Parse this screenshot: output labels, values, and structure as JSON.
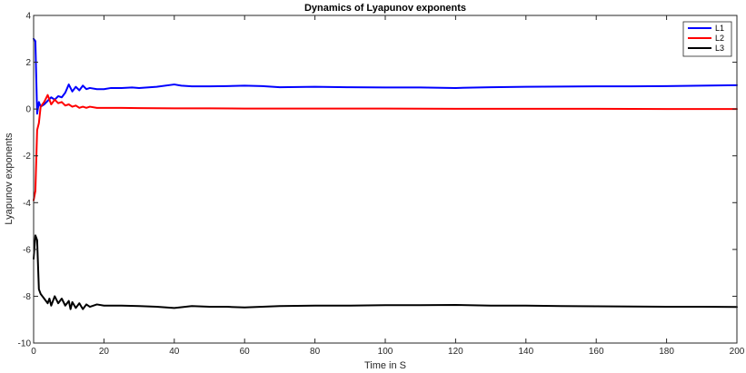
{
  "chart_data": {
    "type": "line",
    "title": "Dynamics of Lyapunov exponents",
    "xlabel": "Time in S",
    "ylabel": "Lyapunov exponents",
    "xlim": [
      0,
      200
    ],
    "ylim": [
      -10,
      4
    ],
    "xticks": [
      0,
      20,
      40,
      60,
      80,
      100,
      120,
      140,
      160,
      180,
      200
    ],
    "yticks": [
      -10,
      -8,
      -6,
      -4,
      -2,
      0,
      2,
      4
    ],
    "xtick_labels": [
      "0",
      "20",
      "40",
      "60",
      "80",
      "100",
      "120",
      "140",
      "160",
      "180",
      "200"
    ],
    "ytick_labels": [
      "-10",
      "-8",
      "-6",
      "-4",
      "-2",
      "0",
      "2",
      "4"
    ],
    "grid": false,
    "legend_position": "top-right",
    "series": [
      {
        "name": "L1",
        "color": "#0000ff",
        "x": [
          0,
          0.5,
          1,
          1.5,
          2,
          3,
          4,
          5,
          6,
          7,
          8,
          9,
          10,
          11,
          12,
          13,
          14,
          15,
          16,
          18,
          20,
          22,
          25,
          28,
          30,
          35,
          40,
          42,
          45,
          50,
          55,
          60,
          65,
          70,
          80,
          90,
          100,
          110,
          120,
          130,
          140,
          150,
          160,
          170,
          180,
          190,
          200
        ],
        "y": [
          3.0,
          2.9,
          -0.2,
          0.3,
          0.1,
          0.2,
          0.35,
          0.5,
          0.4,
          0.55,
          0.5,
          0.7,
          1.05,
          0.75,
          0.95,
          0.8,
          1.0,
          0.85,
          0.9,
          0.85,
          0.85,
          0.9,
          0.9,
          0.92,
          0.9,
          0.95,
          1.05,
          1.0,
          0.97,
          0.97,
          0.98,
          1.0,
          0.98,
          0.93,
          0.95,
          0.93,
          0.92,
          0.92,
          0.9,
          0.93,
          0.95,
          0.96,
          0.97,
          0.97,
          0.98,
          1.0,
          1.02
        ]
      },
      {
        "name": "L2",
        "color": "#ff0000",
        "x": [
          0,
          0.5,
          1,
          1.5,
          2,
          3,
          4,
          5,
          6,
          7,
          8,
          9,
          10,
          11,
          12,
          13,
          14,
          15,
          16,
          18,
          20,
          25,
          30,
          40,
          50,
          60,
          70,
          80,
          100,
          120,
          140,
          160,
          180,
          200
        ],
        "y": [
          -3.9,
          -3.5,
          -0.9,
          -0.6,
          0.1,
          0.3,
          0.6,
          0.2,
          0.4,
          0.25,
          0.3,
          0.15,
          0.2,
          0.1,
          0.15,
          0.05,
          0.1,
          0.05,
          0.1,
          0.05,
          0.05,
          0.05,
          0.04,
          0.03,
          0.03,
          0.02,
          0.02,
          0.02,
          0.02,
          0.01,
          0.01,
          0.01,
          0.0,
          0.0
        ]
      },
      {
        "name": "L3",
        "color": "#000000",
        "x": [
          0,
          0.5,
          1,
          1.5,
          2,
          2.5,
          3,
          4,
          4.5,
          5,
          6,
          7,
          8,
          9,
          10,
          10.5,
          11,
          12,
          13,
          14,
          15,
          16,
          18,
          20,
          25,
          30,
          35,
          40,
          45,
          50,
          55,
          60,
          70,
          80,
          90,
          100,
          110,
          120,
          130,
          140,
          150,
          160,
          170,
          180,
          190,
          200
        ],
        "y": [
          -6.4,
          -5.4,
          -5.6,
          -7.7,
          -7.9,
          -8.0,
          -8.1,
          -8.3,
          -8.1,
          -8.4,
          -8.0,
          -8.3,
          -8.1,
          -8.4,
          -8.2,
          -8.55,
          -8.25,
          -8.5,
          -8.3,
          -8.55,
          -8.35,
          -8.45,
          -8.35,
          -8.4,
          -8.4,
          -8.42,
          -8.45,
          -8.5,
          -8.42,
          -8.45,
          -8.45,
          -8.48,
          -8.42,
          -8.4,
          -8.4,
          -8.38,
          -8.38,
          -8.37,
          -8.4,
          -8.4,
          -8.42,
          -8.43,
          -8.44,
          -8.45,
          -8.45,
          -8.46
        ]
      }
    ]
  }
}
